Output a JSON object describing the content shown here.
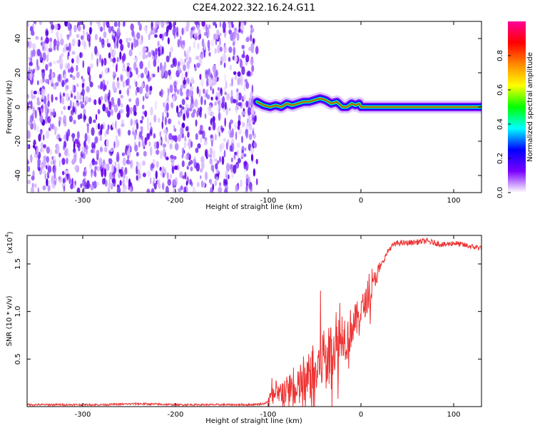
{
  "title": "C2E4.2022.322.16.24.G11",
  "chart_data": [
    {
      "type": "heatmap",
      "xlabel": "Height of straight line (km)",
      "ylabel": "Frequency (Hz)",
      "xlim": [
        -360,
        130
      ],
      "ylim": [
        -50,
        50
      ],
      "xticks": [
        -300,
        -200,
        -100,
        0,
        100
      ],
      "yticks": [
        -40,
        -20,
        0,
        20,
        40
      ],
      "noise_region_x": [
        -360,
        -112
      ],
      "ridge": {
        "x": [
          -112,
          -105,
          -98,
          -92,
          -86,
          -80,
          -74,
          -68,
          -62,
          -56,
          -50,
          -44,
          -38,
          -32,
          -26,
          -20,
          -15,
          -10,
          -6,
          -2,
          0,
          10,
          40,
          70,
          100,
          130
        ],
        "y": [
          3,
          1,
          0,
          1,
          0,
          2,
          1,
          2,
          3,
          3,
          4,
          5,
          4,
          2,
          3,
          0,
          0,
          2,
          1,
          2,
          0,
          0,
          0,
          0,
          0,
          0
        ]
      },
      "colorbar": {
        "label": "Normalized spectral amplitude",
        "range": [
          0,
          1
        ],
        "ticks": [
          0.0,
          0.2,
          0.4,
          0.6,
          0.8
        ],
        "colors": [
          "#ffffff",
          "#7a00ff",
          "#0000ff",
          "#00ffff",
          "#00ff00",
          "#ffff00",
          "#ff8800",
          "#ff0000",
          "#ff0099"
        ]
      }
    },
    {
      "type": "line",
      "xlabel": "Height of straight line (km)",
      "ylabel": "SNR (10 * v/v)",
      "y_multiplier": "(x10",
      "y_multiplier_exp": "4",
      "xlim": [
        -360,
        130
      ],
      "ylim": [
        0,
        1.8
      ],
      "xticks": [
        -300,
        -200,
        -100,
        0,
        100
      ],
      "yticks": [
        0.5,
        1.0,
        1.5
      ],
      "series": [
        {
          "color": "#ee3333",
          "x": [
            -360,
            -320,
            -280,
            -240,
            -200,
            -160,
            -120,
            -105,
            -100,
            -95,
            -90,
            -85,
            -80,
            -75,
            -70,
            -65,
            -60,
            -55,
            -50,
            -45,
            -40,
            -35,
            -30,
            -25,
            -20,
            -15,
            -10,
            -5,
            0,
            5,
            10,
            15,
            20,
            25,
            30,
            35,
            40,
            50,
            60,
            70,
            80,
            90,
            100,
            110,
            120,
            130
          ],
          "y": [
            0.02,
            0.02,
            0.02,
            0.03,
            0.02,
            0.02,
            0.02,
            0.03,
            0.05,
            0.12,
            0.08,
            0.18,
            0.15,
            0.22,
            0.1,
            0.25,
            0.18,
            0.35,
            0.3,
            0.45,
            0.55,
            0.5,
            0.65,
            0.6,
            0.8,
            0.7,
            0.85,
            0.9,
            1.0,
            1.1,
            1.15,
            1.35,
            1.45,
            1.55,
            1.65,
            1.7,
            1.72,
            1.72,
            1.73,
            1.74,
            1.72,
            1.7,
            1.72,
            1.7,
            1.68,
            1.67
          ]
        }
      ]
    }
  ]
}
